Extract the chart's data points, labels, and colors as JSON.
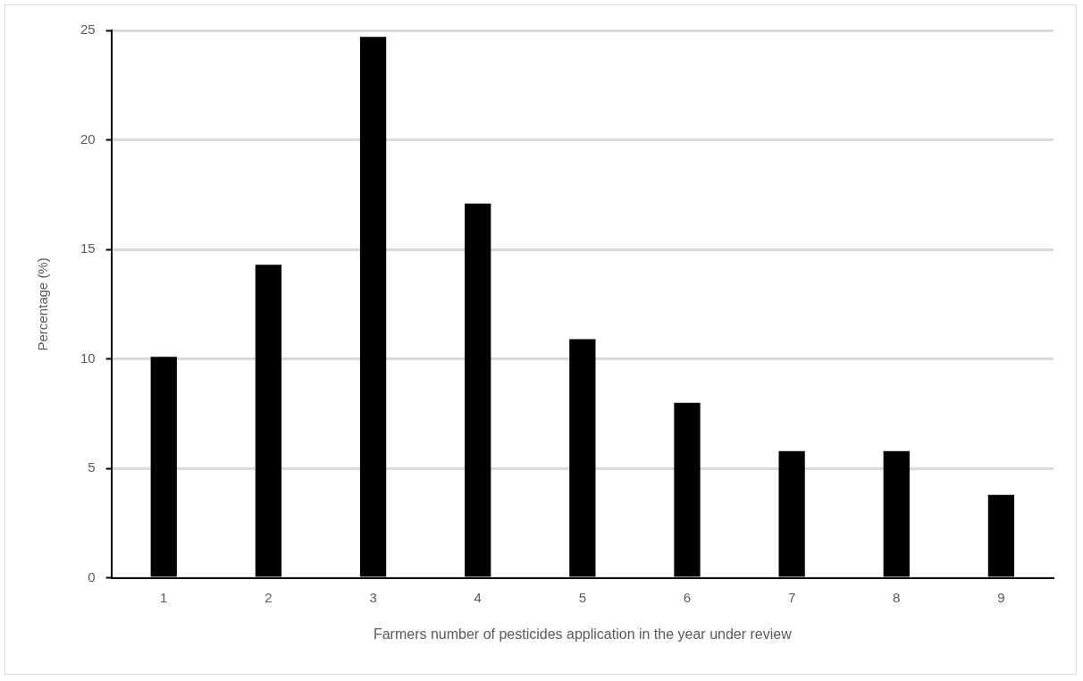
{
  "chart_data": {
    "type": "bar",
    "xlabel": "Farmers number of pesticides application in the year under review",
    "ylabel": "Percentage (%)",
    "categories": [
      "1",
      "2",
      "3",
      "4",
      "5",
      "6",
      "7",
      "8",
      "9"
    ],
    "values": [
      10.1,
      14.3,
      24.7,
      17.1,
      10.9,
      8.0,
      5.8,
      5.8,
      3.8
    ],
    "color": "#000000",
    "ylim": [
      0,
      25
    ],
    "yticks": [
      0,
      5,
      10,
      15,
      20,
      25
    ],
    "grid": "y",
    "legend": false
  }
}
